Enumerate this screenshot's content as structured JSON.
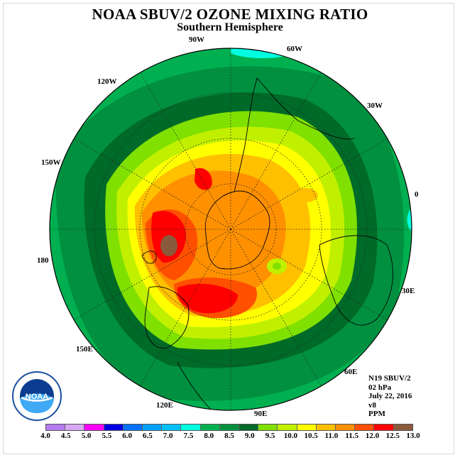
{
  "header": {
    "title": "NOAA SBUV/2 OZONE MIXING RATIO",
    "subtitle": "Southern Hemisphere"
  },
  "map": {
    "longitude_labels": [
      "90W",
      "60W",
      "30W",
      "0",
      "30E",
      "60E",
      "90E",
      "120E",
      "150E",
      "180",
      "150W",
      "120W"
    ],
    "land_outline_color": "#000000",
    "gridline_style": "dotted"
  },
  "info": {
    "satellite": "N19 SBUV/2",
    "pressure": "02 hPa",
    "date": "July 22, 2016",
    "version": "v8",
    "units": "PPM"
  },
  "logo": {
    "text": "NOAA"
  },
  "colorbar": {
    "ticks": [
      "4.0",
      "4.5",
      "5.0",
      "5.5",
      "6.0",
      "6.5",
      "7.0",
      "7.5",
      "8.0",
      "8.5",
      "9.0",
      "9.5",
      "10.0",
      "10.5",
      "11.0",
      "11.5",
      "12.0",
      "12.5",
      "13.0"
    ],
    "colors": [
      "#b57cf0",
      "#d8a8f4",
      "#ff00ff",
      "#0000e0",
      "#0070ff",
      "#00a0ff",
      "#00c0ff",
      "#00ffe0",
      "#00b050",
      "#009040",
      "#006a28",
      "#80e000",
      "#c0f000",
      "#ffff00",
      "#ffc000",
      "#ff9000",
      "#ff5000",
      "#ff0000",
      "#8b5a3c"
    ]
  }
}
